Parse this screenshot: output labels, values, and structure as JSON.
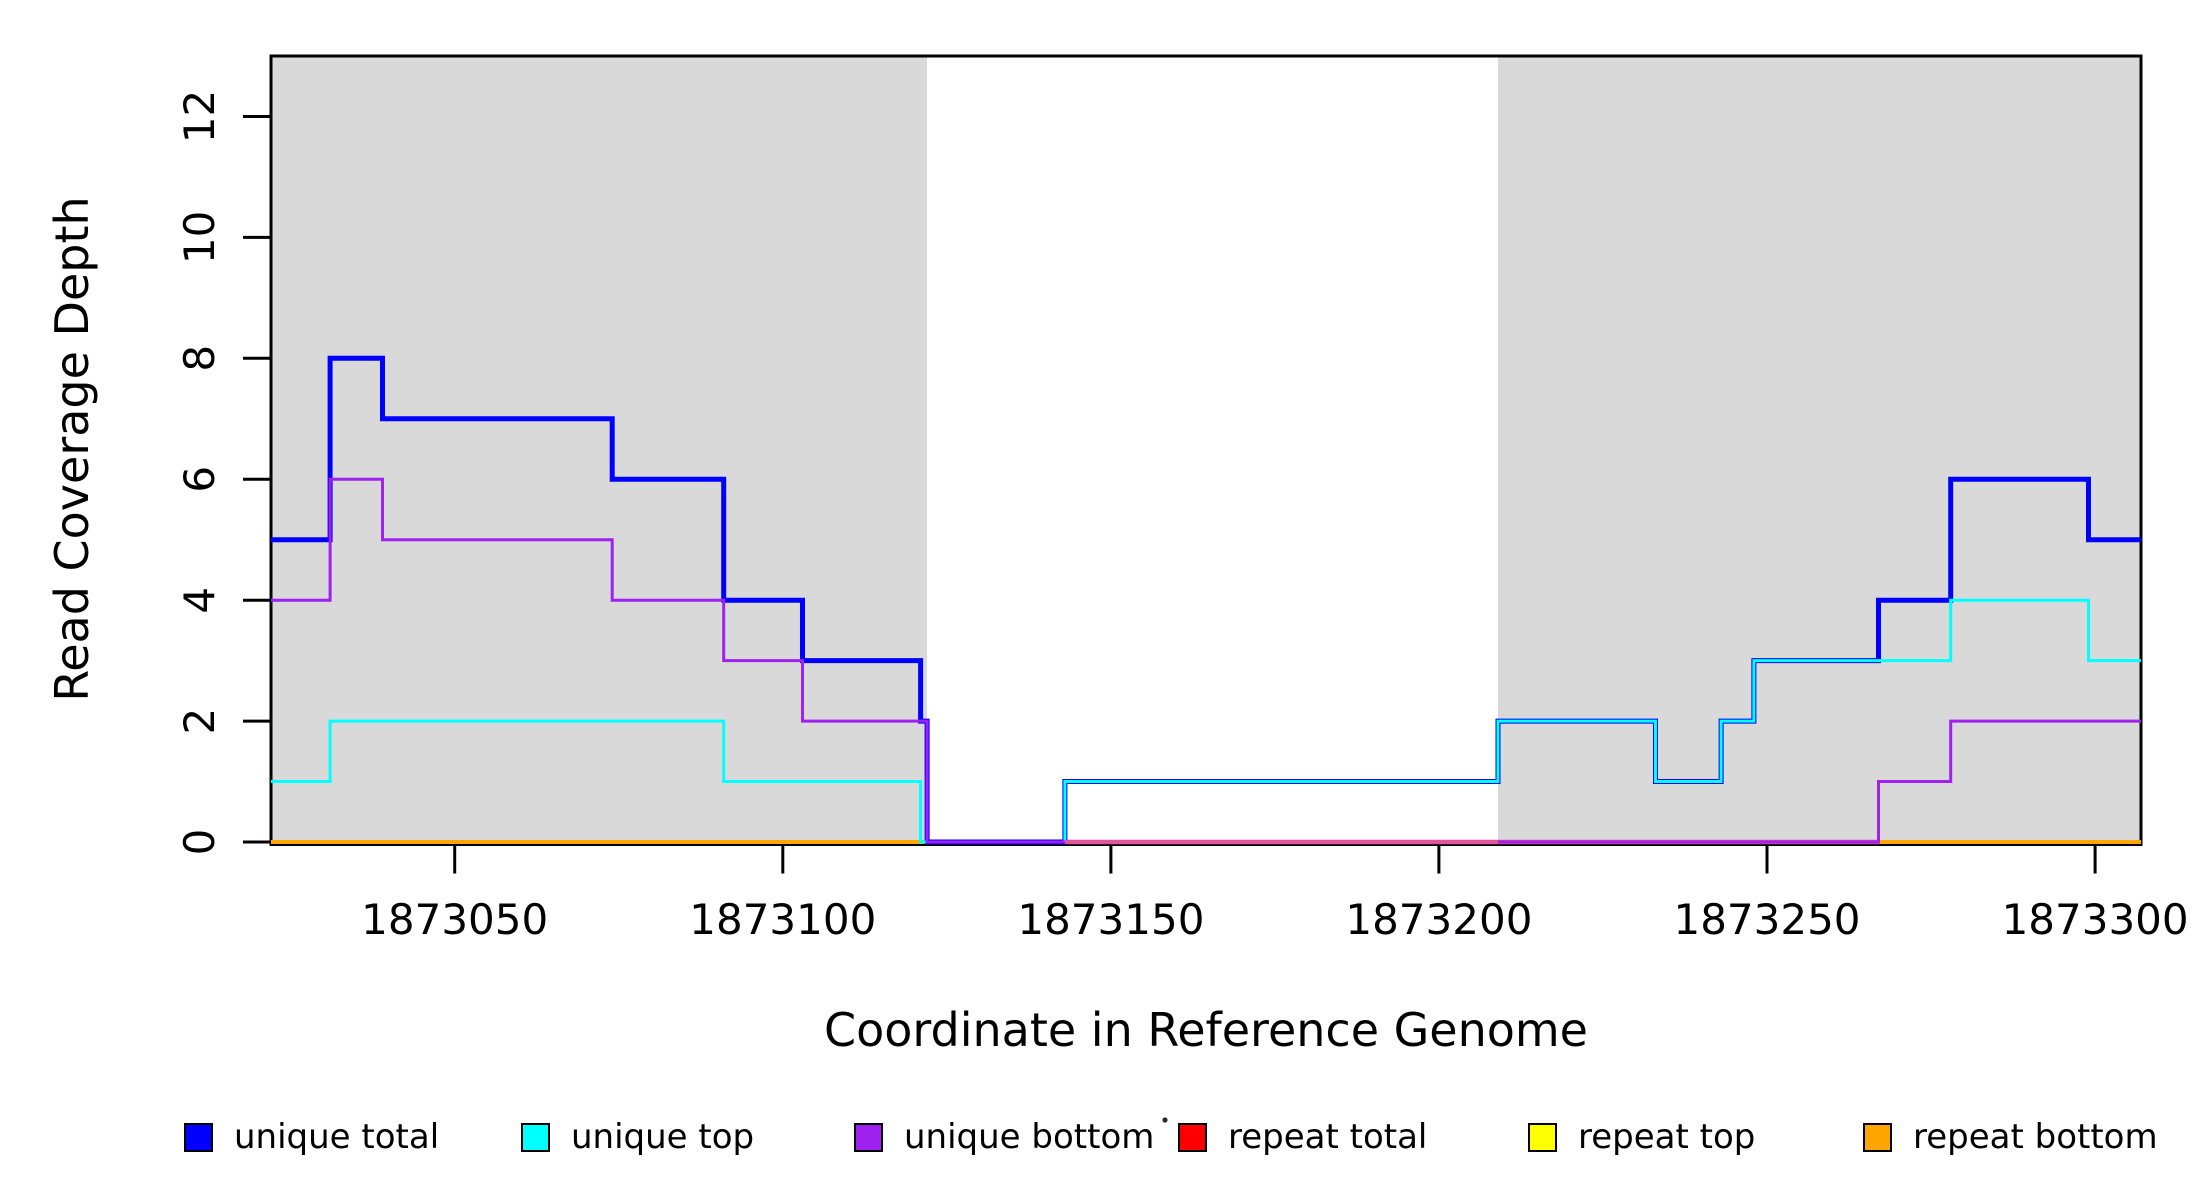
{
  "chart_data": {
    "type": "line",
    "subtype": "step-coverage-plot",
    "title": "",
    "xlabel": "Coordinate in Reference Genome",
    "ylabel": "Read Coverage Depth",
    "x_domain": [
      1873022,
      1873307
    ],
    "y_domain": [
      0,
      13
    ],
    "x_ticks": [
      1873050,
      1873100,
      1873150,
      1873200,
      1873250,
      1873300
    ],
    "y_ticks": [
      0,
      2,
      4,
      6,
      8,
      10,
      12
    ],
    "grid": false,
    "background_color": "#ffffff",
    "shaded_regions": [
      {
        "from": 1873022,
        "to": 1873122,
        "color": "#D9D9D9"
      },
      {
        "from": 1873209,
        "to": 1873307,
        "color": "#D9D9D9"
      }
    ],
    "series": [
      {
        "name": "repeat top",
        "color": "#FFFF00",
        "lwd": 3,
        "steps": [
          [
            1873022,
            0
          ]
        ]
      },
      {
        "name": "repeat total",
        "color": "#FF0000",
        "lwd": 3,
        "steps": [
          [
            1873022,
            0
          ]
        ]
      },
      {
        "name": "repeat bottom",
        "color": "#FFA500",
        "lwd": 4,
        "steps": [
          [
            1873022,
            0
          ]
        ]
      },
      {
        "name": "unique total",
        "color": "#0000FF",
        "lwd": 5,
        "steps": [
          [
            1873022,
            5
          ],
          [
            1873031,
            8
          ],
          [
            1873039,
            7
          ],
          [
            1873074,
            6
          ],
          [
            1873091,
            4
          ],
          [
            1873103,
            3
          ],
          [
            1873121,
            2
          ],
          [
            1873122,
            0
          ],
          [
            1873143,
            1
          ],
          [
            1873209,
            2
          ],
          [
            1873233,
            1
          ],
          [
            1873243,
            2
          ],
          [
            1873248,
            3
          ],
          [
            1873267,
            4
          ],
          [
            1873278,
            6
          ],
          [
            1873299,
            5
          ]
        ]
      },
      {
        "name": "unique top",
        "color": "#00FFFF",
        "lwd": 3,
        "steps": [
          [
            1873022,
            1
          ],
          [
            1873031,
            2
          ],
          [
            1873091,
            1
          ],
          [
            1873121,
            0
          ],
          [
            1873143,
            1
          ],
          [
            1873209,
            2
          ],
          [
            1873233,
            1
          ],
          [
            1873243,
            2
          ],
          [
            1873248,
            3
          ],
          [
            1873278,
            4
          ],
          [
            1873299,
            3
          ]
        ]
      },
      {
        "name": "unique bottom",
        "color": "#A020F0",
        "lwd": 3,
        "steps": [
          [
            1873022,
            4
          ],
          [
            1873031,
            6
          ],
          [
            1873039,
            5
          ],
          [
            1873074,
            4
          ],
          [
            1873091,
            3
          ],
          [
            1873103,
            2
          ],
          [
            1873122,
            0
          ],
          [
            1873267,
            1
          ],
          [
            1873278,
            2
          ]
        ]
      }
    ],
    "zero_line_overlays": [
      {
        "from": 1873143,
        "to": 1873267,
        "color": "#DB4D92",
        "width": 4.5,
        "layer": "under"
      },
      {
        "from": 1873143,
        "to": 1873209,
        "color": "#E0559B",
        "width": 4,
        "layer": "over"
      }
    ],
    "legend": [
      {
        "label": "unique total",
        "color": "#0000FF"
      },
      {
        "label": "unique top",
        "color": "#00FFFF"
      },
      {
        "label": "unique bottom",
        "color": "#A020F0"
      },
      {
        "label": "repeat total",
        "color": "#FF0000"
      },
      {
        "label": "repeat top",
        "color": "#FFFF00"
      },
      {
        "label": "repeat bottom",
        "color": "#FFA500"
      }
    ],
    "legend_position": "bottom",
    "axis_color": "#000000",
    "stray_mark": {
      "present": true
    }
  }
}
